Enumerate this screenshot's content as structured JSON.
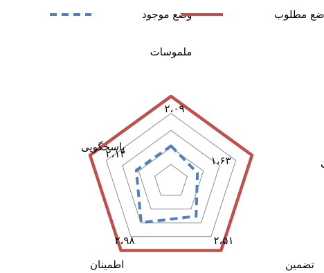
{
  "chart_data": {
    "type": "radar",
    "title": "",
    "axes": [
      "ملموسات",
      "همدلی",
      "تضمین",
      "اطمینان",
      "پاسخگویی"
    ],
    "value_labels": [
      "۲،۰۹",
      "۱،۶۳",
      "۲،۵۱",
      "۲،۹۸",
      "۲،۱۴"
    ],
    "rmax": 5,
    "rings": [
      1,
      2,
      3,
      4,
      5
    ],
    "series": [
      {
        "name": "وضع مطلوب",
        "values": [
          5,
          5,
          5,
          5,
          5
        ],
        "color": "#c0504d",
        "style": "solid"
      },
      {
        "name": "وضع موجود",
        "values": [
          2.09,
          1.63,
          2.51,
          2.98,
          2.14
        ],
        "color": "#4f81bd",
        "style": "dashed"
      }
    ],
    "legend_position": "top",
    "grid": true
  }
}
